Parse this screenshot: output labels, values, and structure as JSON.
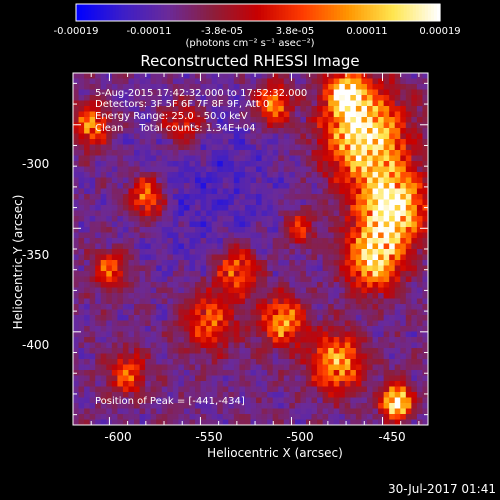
{
  "chart_data": {
    "type": "heatmap",
    "title": "Reconstructed RHESSI Image",
    "xlabel": "Heliocentric X (arcsec)",
    "ylabel": "Heliocentric Y (arcsec)",
    "xlim": [
      -620,
      -425
    ],
    "ylim": [
      -445,
      -275
    ],
    "x_ticks": [
      "-600",
      "-550",
      "-500",
      "-450"
    ],
    "y_ticks": [
      "-300",
      "-350",
      "-400"
    ],
    "colorbar": {
      "ticks": [
        "-0.00019",
        "-0.00011",
        "-3.8e-05",
        "3.8e-05",
        "0.00011",
        "0.00019"
      ],
      "unit_label": "(photons cm⁻² s⁻¹ asec⁻²)",
      "range": [
        -0.00019,
        0.00019
      ],
      "colormap": [
        "#0000ff",
        "#3c1ec8",
        "#6a2a9a",
        "#8c1e3c",
        "#c80000",
        "#ff3c00",
        "#ff9600",
        "#ffe650",
        "#ffffff"
      ]
    },
    "annotations": [
      "5-Aug-2015 17:42:32.000 to 17:52:32.000",
      "Detectors: 3F 5F 6F 7F 8F 9F, Att 0",
      "Energy Range: 25.0 - 50.0 keV",
      "Clean     Total counts: 1.34E+04",
      "Position of Peak = [-441,-434]"
    ],
    "peak": {
      "x": -441,
      "y": -434
    }
  },
  "footer": {
    "timestamp": "30-Jul-2017 01:41"
  }
}
